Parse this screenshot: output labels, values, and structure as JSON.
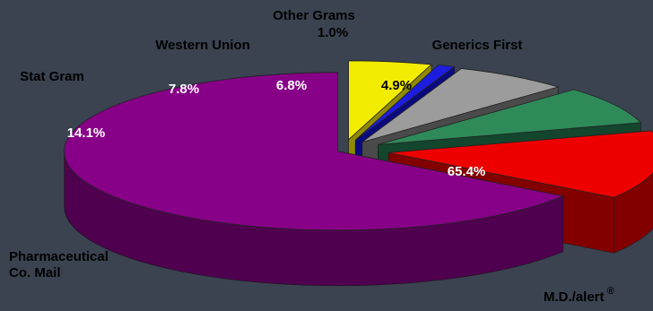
{
  "chart_data": {
    "type": "pie",
    "title": "",
    "categories": [
      "Generics First",
      "Other Grams",
      "Western Union",
      "Stat Gram",
      "Pharmaceutical Co. Mail",
      "M.D./alert"
    ],
    "values": [
      4.9,
      1.0,
      6.8,
      7.8,
      14.1,
      65.4
    ],
    "category_lines": [
      [
        "Generics First"
      ],
      [
        "Other Grams"
      ],
      [
        "Western Union"
      ],
      [
        "Stat Gram"
      ],
      [
        "Pharmaceutical",
        "Co. Mail"
      ],
      [
        "M.D./alert"
      ]
    ],
    "value_labels": [
      "4.9%",
      "1.0%",
      "6.8%",
      "7.8%",
      "14.1%",
      "65.4%"
    ],
    "registered_mark": "®",
    "colors": [
      "#f2ec00",
      "#1d1de0",
      "#9c9c9c",
      "#2f8a5a",
      "#ee0000",
      "#880088"
    ],
    "side_colors": [
      "#8f8a00",
      "#0a0a80",
      "#4a4a4a",
      "#14452d",
      "#830000",
      "#4f004f"
    ],
    "exploded": true,
    "legend": "none",
    "grid": false,
    "background": "#3b4351"
  }
}
